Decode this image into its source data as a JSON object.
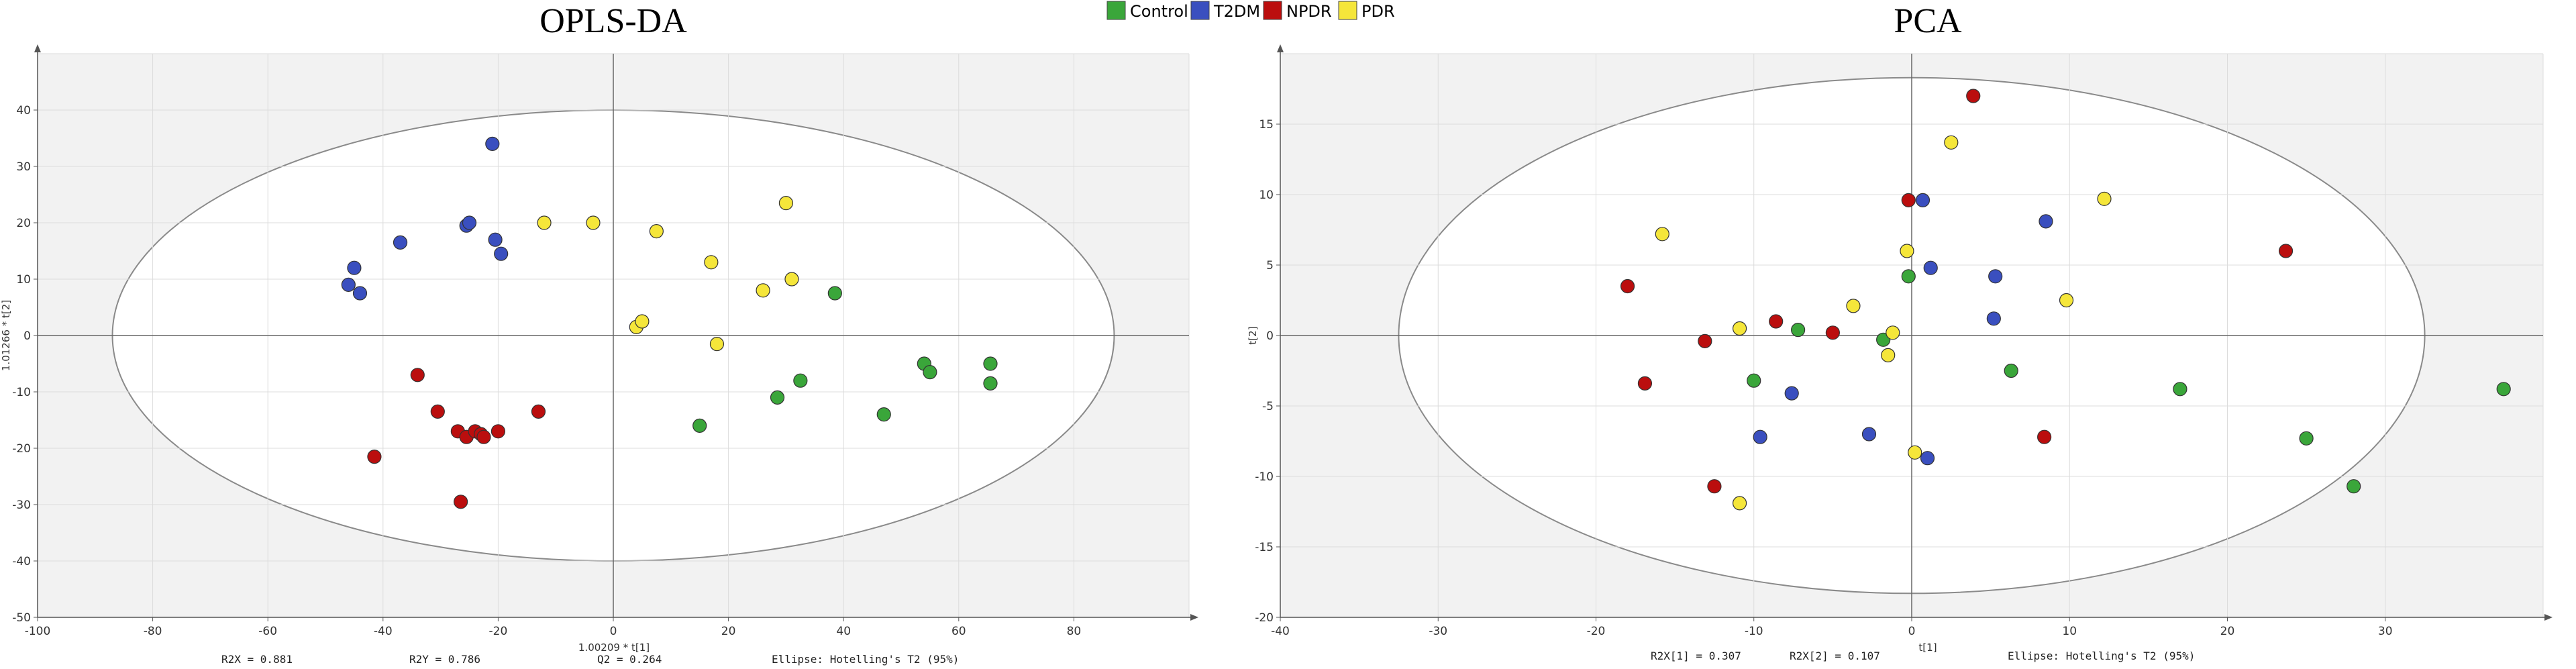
{
  "legend": [
    {
      "label": "Control",
      "color": "#3aa63a"
    },
    {
      "label": "T2DM",
      "color": "#3a4fbf"
    },
    {
      "label": "NPDR",
      "color": "#bb0e0e"
    },
    {
      "label": "PDR",
      "color": "#f5e63a"
    }
  ],
  "chart_data": [
    {
      "type": "scatter",
      "title": "OPLS-DA",
      "xlabel": "1.00209 * t[1]",
      "ylabel": "1.01266 * t[2]",
      "xlim": [
        -100,
        100
      ],
      "ylim": [
        -50,
        50
      ],
      "xticks": [
        -100,
        -80,
        -60,
        -40,
        -20,
        0,
        20,
        40,
        60,
        80
      ],
      "yticks": [
        -50,
        -40,
        -30,
        -20,
        -10,
        0,
        10,
        20,
        30,
        40
      ],
      "ellipse": {
        "center": [
          0,
          0
        ],
        "rx": 87,
        "ry": 40
      },
      "stats": [
        "R2X = 0.881",
        "R2Y = 0.786",
        "Q2 = 0.264",
        "Ellipse: Hotelling's T2 (95%)"
      ],
      "series": [
        {
          "name": "Control",
          "color": "#3aa63a",
          "points": [
            [
              15,
              -16
            ],
            [
              28.5,
              -11
            ],
            [
              32.5,
              -8
            ],
            [
              38.5,
              7.5
            ],
            [
              47,
              -14
            ],
            [
              54,
              -5
            ],
            [
              55,
              -6.5
            ],
            [
              65.5,
              -5
            ],
            [
              65.5,
              -8.5
            ]
          ]
        },
        {
          "name": "T2DM",
          "color": "#3a4fbf",
          "points": [
            [
              -46,
              9
            ],
            [
              -45,
              12
            ],
            [
              -44,
              7.5
            ],
            [
              -37,
              16.5
            ],
            [
              -25.5,
              19.5
            ],
            [
              -25,
              20
            ],
            [
              -21,
              34
            ],
            [
              -20.5,
              17
            ],
            [
              -19.5,
              14.5
            ]
          ]
        },
        {
          "name": "NPDR",
          "color": "#bb0e0e",
          "points": [
            [
              -41.5,
              -21.5
            ],
            [
              -34,
              -7
            ],
            [
              -30.5,
              -13.5
            ],
            [
              -27,
              -17
            ],
            [
              -26.5,
              -29.5
            ],
            [
              -25.5,
              -18
            ],
            [
              -24,
              -17
            ],
            [
              -23,
              -17.5
            ],
            [
              -22.5,
              -18
            ],
            [
              -20,
              -17
            ],
            [
              -13,
              -13.5
            ]
          ]
        },
        {
          "name": "PDR",
          "color": "#f5e63a",
          "points": [
            [
              -12,
              20
            ],
            [
              -3.5,
              20
            ],
            [
              4,
              1.5
            ],
            [
              5,
              2.5
            ],
            [
              7.5,
              18.5
            ],
            [
              17,
              13
            ],
            [
              18,
              -1.5
            ],
            [
              26,
              8
            ],
            [
              30,
              23.5
            ],
            [
              31,
              10
            ]
          ]
        }
      ]
    },
    {
      "type": "scatter",
      "title": "PCA",
      "xlabel": "t[1]",
      "ylabel": "t[2]",
      "xlim": [
        -40,
        40
      ],
      "ylim": [
        -20,
        20
      ],
      "xticks": [
        -40,
        -30,
        -20,
        -10,
        0,
        10,
        20,
        30
      ],
      "yticks": [
        -20,
        -15,
        -10,
        -5,
        0,
        5,
        10,
        15
      ],
      "ellipse": {
        "center": [
          0,
          0
        ],
        "rx": 32.5,
        "ry": 18.3
      },
      "stats": [
        "R2X[1] = 0.307",
        "R2X[2] = 0.107",
        "Ellipse: Hotelling's T2 (95%)"
      ],
      "series": [
        {
          "name": "Control",
          "color": "#3aa63a",
          "points": [
            [
              -10,
              -3.2
            ],
            [
              -7.2,
              0.4
            ],
            [
              -1.8,
              -0.3
            ],
            [
              -0.2,
              4.2
            ],
            [
              6.3,
              -2.5
            ],
            [
              17,
              -3.8
            ],
            [
              25,
              -7.3
            ],
            [
              28,
              -10.7
            ],
            [
              37.5,
              -3.8
            ]
          ]
        },
        {
          "name": "T2DM",
          "color": "#3a4fbf",
          "points": [
            [
              -9.6,
              -7.2
            ],
            [
              -7.6,
              -4.1
            ],
            [
              -2.7,
              -7
            ],
            [
              0.7,
              9.6
            ],
            [
              1.0,
              -8.7
            ],
            [
              1.2,
              4.8
            ],
            [
              5.2,
              1.2
            ],
            [
              5.3,
              4.2
            ],
            [
              8.5,
              8.1
            ]
          ]
        },
        {
          "name": "NPDR",
          "color": "#bb0e0e",
          "points": [
            [
              -18,
              3.5
            ],
            [
              -16.9,
              -3.4
            ],
            [
              -13.1,
              -0.4
            ],
            [
              -12.5,
              -10.7
            ],
            [
              -8.6,
              1.0
            ],
            [
              -5,
              0.2
            ],
            [
              -0.2,
              9.6
            ],
            [
              3.9,
              17.0
            ],
            [
              8.4,
              -7.2
            ],
            [
              23.7,
              6.0
            ]
          ]
        },
        {
          "name": "PDR",
          "color": "#f5e63a",
          "points": [
            [
              -15.8,
              7.2
            ],
            [
              -10.9,
              0.5
            ],
            [
              -10.9,
              -11.9
            ],
            [
              -3.7,
              2.1
            ],
            [
              -1.5,
              -1.4
            ],
            [
              -1.2,
              0.2
            ],
            [
              -0.3,
              6.0
            ],
            [
              0.2,
              -8.3
            ],
            [
              2.5,
              13.7
            ],
            [
              9.8,
              2.5
            ],
            [
              12.2,
              9.7
            ]
          ]
        }
      ]
    }
  ]
}
